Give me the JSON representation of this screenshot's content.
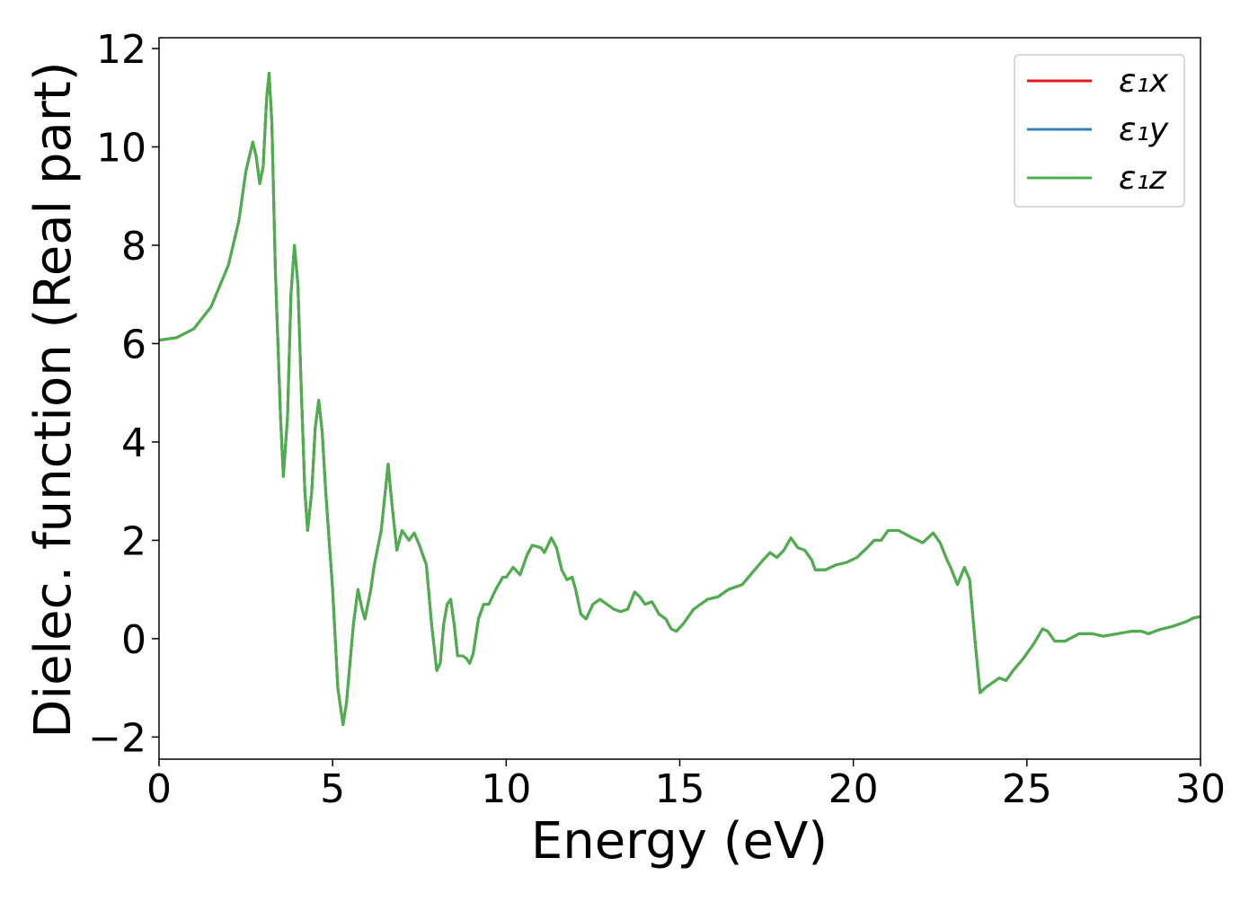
{
  "chart_data": {
    "type": "line",
    "x_label": "Energy (eV)",
    "y_label": "Dielec. function (Real part)",
    "x": [
      0,
      0.5,
      1.0,
      1.5,
      2.0,
      2.3,
      2.5,
      2.7,
      2.8,
      2.9,
      3.0,
      3.1,
      3.17,
      3.25,
      3.35,
      3.5,
      3.58,
      3.7,
      3.8,
      3.9,
      4.0,
      4.1,
      4.2,
      4.28,
      4.4,
      4.5,
      4.6,
      4.7,
      4.8,
      5.0,
      5.15,
      5.3,
      5.4,
      5.6,
      5.73,
      5.85,
      5.93,
      6.1,
      6.2,
      6.4,
      6.6,
      6.7,
      6.85,
      7.0,
      7.1,
      7.2,
      7.35,
      7.5,
      7.7,
      7.85,
      8.0,
      8.1,
      8.2,
      8.3,
      8.4,
      8.5,
      8.6,
      8.75,
      8.85,
      8.95,
      9.05,
      9.2,
      9.35,
      9.5,
      9.7,
      9.9,
      10.0,
      10.2,
      10.4,
      10.6,
      10.75,
      11.0,
      11.1,
      11.3,
      11.45,
      11.6,
      11.75,
      11.9,
      12.0,
      12.15,
      12.3,
      12.5,
      12.7,
      12.9,
      13.1,
      13.3,
      13.5,
      13.7,
      13.85,
      14.0,
      14.2,
      14.4,
      14.6,
      14.75,
      14.9,
      15.1,
      15.4,
      15.8,
      16.1,
      16.4,
      16.8,
      17.1,
      17.4,
      17.6,
      17.8,
      18.0,
      18.2,
      18.4,
      18.6,
      18.8,
      18.9,
      19.2,
      19.5,
      19.8,
      20.1,
      20.4,
      20.6,
      20.8,
      21.0,
      21.3,
      21.7,
      22.0,
      22.3,
      22.5,
      22.7,
      22.8,
      23.0,
      23.2,
      23.35,
      23.5,
      23.65,
      23.8,
      24.0,
      24.2,
      24.4,
      24.6,
      24.9,
      25.2,
      25.45,
      25.6,
      25.8,
      26.1,
      26.5,
      26.9,
      27.2,
      27.6,
      28.0,
      28.3,
      28.5,
      28.8,
      29.2,
      29.6,
      29.8,
      30.0
    ],
    "series": [
      {
        "name": "ε₁x",
        "color": "#e41a1c",
        "values": [
          6.07,
          6.12,
          6.3,
          6.75,
          7.6,
          8.5,
          9.5,
          10.1,
          9.8,
          9.25,
          9.6,
          11.0,
          11.5,
          10.5,
          7.5,
          4.5,
          3.3,
          4.5,
          7.0,
          8.0,
          7.2,
          5.0,
          3.0,
          2.2,
          3.0,
          4.3,
          4.85,
          4.2,
          3.0,
          1.0,
          -1.0,
          -1.75,
          -1.3,
          0.3,
          1.0,
          0.6,
          0.4,
          1.0,
          1.5,
          2.2,
          3.55,
          2.8,
          1.8,
          2.2,
          2.1,
          2.0,
          2.15,
          1.9,
          1.5,
          0.3,
          -0.65,
          -0.5,
          0.3,
          0.7,
          0.8,
          0.3,
          -0.35,
          -0.35,
          -0.4,
          -0.5,
          -0.3,
          0.4,
          0.7,
          0.7,
          1.0,
          1.25,
          1.25,
          1.45,
          1.3,
          1.7,
          1.9,
          1.85,
          1.75,
          2.05,
          1.85,
          1.4,
          1.2,
          1.25,
          1.0,
          0.5,
          0.4,
          0.7,
          0.8,
          0.7,
          0.6,
          0.55,
          0.6,
          0.95,
          0.85,
          0.7,
          0.75,
          0.5,
          0.4,
          0.2,
          0.15,
          0.3,
          0.6,
          0.8,
          0.85,
          1.0,
          1.1,
          1.35,
          1.6,
          1.75,
          1.65,
          1.8,
          2.05,
          1.85,
          1.8,
          1.6,
          1.4,
          1.4,
          1.5,
          1.55,
          1.65,
          1.85,
          2.0,
          2.0,
          2.2,
          2.2,
          2.05,
          1.95,
          2.15,
          1.95,
          1.6,
          1.45,
          1.1,
          1.45,
          1.2,
          0.0,
          -1.1,
          -1.0,
          -0.9,
          -0.8,
          -0.85,
          -0.65,
          -0.4,
          -0.1,
          0.2,
          0.15,
          -0.05,
          -0.05,
          0.1,
          0.1,
          0.05,
          0.1,
          0.15,
          0.15,
          0.1,
          0.18,
          0.25,
          0.35,
          0.42,
          0.45
        ]
      },
      {
        "name": "ε₁y",
        "color": "#377eb8",
        "values": [
          6.07,
          6.12,
          6.3,
          6.75,
          7.6,
          8.5,
          9.5,
          10.1,
          9.8,
          9.25,
          9.6,
          11.0,
          11.5,
          10.5,
          7.5,
          4.5,
          3.3,
          4.5,
          7.0,
          8.0,
          7.2,
          5.0,
          3.0,
          2.2,
          3.0,
          4.3,
          4.85,
          4.2,
          3.0,
          1.0,
          -1.0,
          -1.75,
          -1.3,
          0.3,
          1.0,
          0.6,
          0.4,
          1.0,
          1.5,
          2.2,
          3.55,
          2.8,
          1.8,
          2.2,
          2.1,
          2.0,
          2.15,
          1.9,
          1.5,
          0.3,
          -0.65,
          -0.5,
          0.3,
          0.7,
          0.8,
          0.3,
          -0.35,
          -0.35,
          -0.4,
          -0.5,
          -0.3,
          0.4,
          0.7,
          0.7,
          1.0,
          1.25,
          1.25,
          1.45,
          1.3,
          1.7,
          1.9,
          1.85,
          1.75,
          2.05,
          1.85,
          1.4,
          1.2,
          1.25,
          1.0,
          0.5,
          0.4,
          0.7,
          0.8,
          0.7,
          0.6,
          0.55,
          0.6,
          0.95,
          0.85,
          0.7,
          0.75,
          0.5,
          0.4,
          0.2,
          0.15,
          0.3,
          0.6,
          0.8,
          0.85,
          1.0,
          1.1,
          1.35,
          1.6,
          1.75,
          1.65,
          1.8,
          2.05,
          1.85,
          1.8,
          1.6,
          1.4,
          1.4,
          1.5,
          1.55,
          1.65,
          1.85,
          2.0,
          2.0,
          2.2,
          2.2,
          2.05,
          1.95,
          2.15,
          1.95,
          1.6,
          1.45,
          1.1,
          1.45,
          1.2,
          0.0,
          -1.1,
          -1.0,
          -0.9,
          -0.8,
          -0.85,
          -0.65,
          -0.4,
          -0.1,
          0.2,
          0.15,
          -0.05,
          -0.05,
          0.1,
          0.1,
          0.05,
          0.1,
          0.15,
          0.15,
          0.1,
          0.18,
          0.25,
          0.35,
          0.42,
          0.45
        ]
      },
      {
        "name": "ε₁z",
        "color": "#4daf4a",
        "values": [
          6.07,
          6.12,
          6.3,
          6.75,
          7.6,
          8.5,
          9.5,
          10.1,
          9.8,
          9.25,
          9.6,
          11.0,
          11.5,
          10.5,
          7.5,
          4.5,
          3.3,
          4.5,
          7.0,
          8.0,
          7.2,
          5.0,
          3.0,
          2.2,
          3.0,
          4.3,
          4.85,
          4.2,
          3.0,
          1.0,
          -1.0,
          -1.75,
          -1.3,
          0.3,
          1.0,
          0.6,
          0.4,
          1.0,
          1.5,
          2.2,
          3.55,
          2.8,
          1.8,
          2.2,
          2.1,
          2.0,
          2.15,
          1.9,
          1.5,
          0.3,
          -0.65,
          -0.5,
          0.3,
          0.7,
          0.8,
          0.3,
          -0.35,
          -0.35,
          -0.4,
          -0.5,
          -0.3,
          0.4,
          0.7,
          0.7,
          1.0,
          1.25,
          1.25,
          1.45,
          1.3,
          1.7,
          1.9,
          1.85,
          1.75,
          2.05,
          1.85,
          1.4,
          1.2,
          1.25,
          1.0,
          0.5,
          0.4,
          0.7,
          0.8,
          0.7,
          0.6,
          0.55,
          0.6,
          0.95,
          0.85,
          0.7,
          0.75,
          0.5,
          0.4,
          0.2,
          0.15,
          0.3,
          0.6,
          0.8,
          0.85,
          1.0,
          1.1,
          1.35,
          1.6,
          1.75,
          1.65,
          1.8,
          2.05,
          1.85,
          1.8,
          1.6,
          1.4,
          1.4,
          1.5,
          1.55,
          1.65,
          1.85,
          2.0,
          2.0,
          2.2,
          2.2,
          2.05,
          1.95,
          2.15,
          1.95,
          1.6,
          1.45,
          1.1,
          1.45,
          1.2,
          0.0,
          -1.1,
          -1.0,
          -0.9,
          -0.8,
          -0.85,
          -0.65,
          -0.4,
          -0.1,
          0.2,
          0.15,
          -0.05,
          -0.05,
          0.1,
          0.1,
          0.05,
          0.1,
          0.15,
          0.15,
          0.1,
          0.18,
          0.25,
          0.35,
          0.42,
          0.45
        ]
      }
    ],
    "xlim": [
      0,
      30
    ],
    "xticks": [
      0,
      5,
      10,
      15,
      20,
      25,
      30
    ],
    "ylim": [
      -2.45,
      12.22
    ],
    "yticks": [
      {
        "value": -2,
        "label": "−2"
      },
      0,
      2,
      4,
      6,
      8,
      10,
      12
    ],
    "legend": "upper right"
  }
}
